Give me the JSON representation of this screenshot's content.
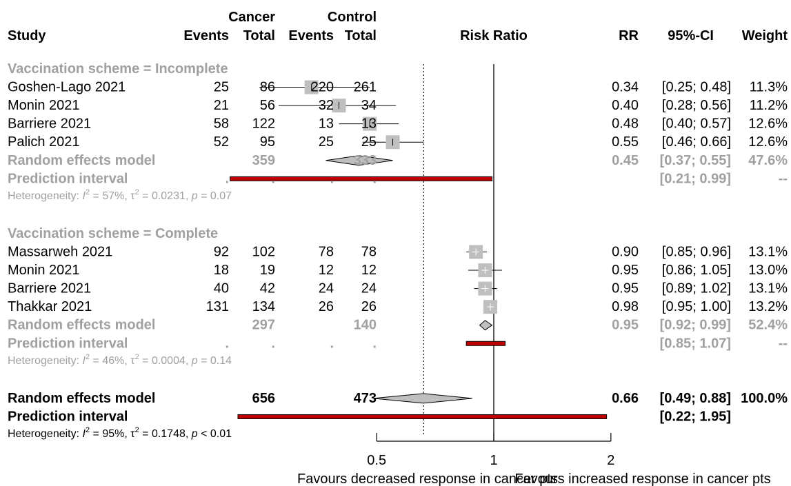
{
  "header": {
    "study": "Study",
    "cancer_group": "Cancer",
    "control_group": "Control",
    "events": "Events",
    "total": "Total",
    "plot_title": "Risk Ratio",
    "rr": "RR",
    "ci": "95%-CI",
    "weight": "Weight"
  },
  "colors": {
    "text": "#000000",
    "summary_text": "#a0a0a0",
    "box": "#bfbfbf",
    "diamond": "#bfbfbf",
    "prediction_bar": "#c00000"
  },
  "chart_data": {
    "type": "forest",
    "x_scale": "log",
    "xlim": [
      0.22,
      2.0
    ],
    "ticks": [
      0.5,
      1,
      2
    ],
    "tick_labels": [
      "0.5",
      "1",
      "2"
    ],
    "null_line": 1,
    "overall_line": 0.66,
    "x_caption_left": "Favours decreased response in cancer pts",
    "x_caption_right": "Favours increased response in cancer pts",
    "rows": [
      {
        "kind": "subgroup",
        "label": "Vaccination scheme = Incomplete"
      },
      {
        "kind": "study",
        "label": "Goshen-Lago 2021",
        "e1": "25",
        "n1": "86",
        "e2": "220",
        "n2": "261",
        "rr": 0.34,
        "lo": 0.25,
        "hi": 0.48,
        "rr_text": "0.34",
        "ci_text": "[0.25; 0.48]",
        "weight": "11.3%"
      },
      {
        "kind": "study",
        "label": "Monin 2021",
        "e1": "21",
        "n1": "56",
        "e2": "32",
        "n2": "34",
        "rr": 0.4,
        "lo": 0.28,
        "hi": 0.56,
        "rr_text": "0.40",
        "ci_text": "[0.28; 0.56]",
        "weight": "11.2%"
      },
      {
        "kind": "study",
        "label": "Barriere 2021",
        "e1": "58",
        "n1": "122",
        "e2": "13",
        "n2": "13",
        "rr": 0.48,
        "lo": 0.4,
        "hi": 0.57,
        "rr_text": "0.48",
        "ci_text": "[0.40; 0.57]",
        "weight": "12.6%"
      },
      {
        "kind": "study",
        "label": "Palich 2021",
        "e1": "52",
        "n1": "95",
        "e2": "25",
        "n2": "25",
        "rr": 0.55,
        "lo": 0.46,
        "hi": 0.66,
        "rr_text": "0.55",
        "ci_text": "[0.46; 0.66]",
        "weight": "12.6%"
      },
      {
        "kind": "subtotal",
        "label": "Random effects model",
        "n1": "359",
        "n2": "333",
        "rr": 0.45,
        "lo": 0.37,
        "hi": 0.55,
        "rr_text": "0.45",
        "ci_text": "[0.37; 0.55]",
        "weight": "47.6%"
      },
      {
        "kind": "subpred",
        "label": "Prediction interval",
        "e1": ".",
        "n1": ".",
        "e2": ".",
        "n2": ".",
        "lo": 0.21,
        "hi": 0.99,
        "ci_text": "[0.21; 0.99]",
        "weight": "--"
      },
      {
        "kind": "subhet",
        "label": "Heterogeneity:",
        "i2": "57%",
        "tau2": "0.0231",
        "p_sym": "=",
        "p": "0.07"
      },
      {
        "kind": "blank"
      },
      {
        "kind": "subgroup",
        "label": "Vaccination scheme = Complete"
      },
      {
        "kind": "study",
        "label": "Massarweh 2021",
        "e1": "92",
        "n1": "102",
        "e2": "78",
        "n2": "78",
        "rr": 0.9,
        "lo": 0.85,
        "hi": 0.96,
        "rr_text": "0.90",
        "ci_text": "[0.85; 0.96]",
        "weight": "13.1%"
      },
      {
        "kind": "study",
        "label": "Monin 2021",
        "e1": "18",
        "n1": "19",
        "e2": "12",
        "n2": "12",
        "rr": 0.95,
        "lo": 0.86,
        "hi": 1.05,
        "rr_text": "0.95",
        "ci_text": "[0.86; 1.05]",
        "weight": "13.0%"
      },
      {
        "kind": "study",
        "label": "Barriere 2021",
        "e1": "40",
        "n1": "42",
        "e2": "24",
        "n2": "24",
        "rr": 0.95,
        "lo": 0.89,
        "hi": 1.02,
        "rr_text": "0.95",
        "ci_text": "[0.89; 1.02]",
        "weight": "13.1%"
      },
      {
        "kind": "study",
        "label": "Thakkar 2021",
        "e1": "131",
        "n1": "134",
        "e2": "26",
        "n2": "26",
        "rr": 0.98,
        "lo": 0.95,
        "hi": 1.0,
        "rr_text": "0.98",
        "ci_text": "[0.95; 1.00]",
        "weight": "13.2%"
      },
      {
        "kind": "subtotal",
        "label": "Random effects model",
        "n1": "297",
        "n2": "140",
        "rr": 0.95,
        "lo": 0.92,
        "hi": 0.99,
        "rr_text": "0.95",
        "ci_text": "[0.92; 0.99]",
        "weight": "52.4%"
      },
      {
        "kind": "subpred",
        "label": "Prediction interval",
        "e1": ".",
        "n1": ".",
        "e2": ".",
        "n2": ".",
        "lo": 0.85,
        "hi": 1.07,
        "ci_text": "[0.85; 1.07]",
        "weight": "--"
      },
      {
        "kind": "subhet",
        "label": "Heterogeneity:",
        "i2": "46%",
        "tau2": "0.0004",
        "p_sym": "=",
        "p": "0.14"
      },
      {
        "kind": "blank"
      },
      {
        "kind": "overall",
        "label": "Random effects model",
        "n1": "656",
        "n2": "473",
        "rr": 0.66,
        "lo": 0.49,
        "hi": 0.88,
        "rr_text": "0.66",
        "ci_text": "[0.49; 0.88]",
        "weight": "100.0%"
      },
      {
        "kind": "pred",
        "label": "Prediction interval",
        "lo": 0.22,
        "hi": 1.95,
        "ci_text": "[0.22; 1.95]"
      },
      {
        "kind": "het",
        "label": "Heterogeneity:",
        "i2": "95%",
        "tau2": "0.1748",
        "p_sym": "<",
        "p": "0.01"
      }
    ]
  }
}
